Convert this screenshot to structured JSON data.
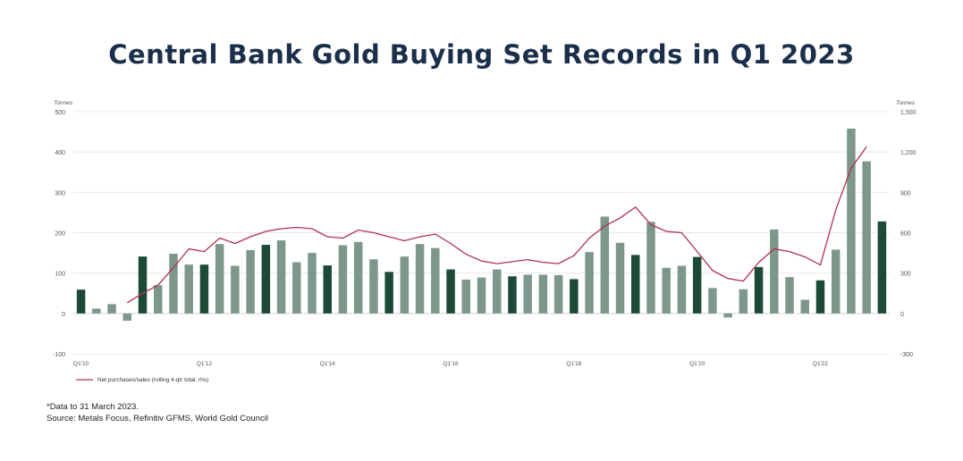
{
  "title": "Central Bank Gold Buying Set Records in Q1 2023",
  "footnotes": {
    "note": "*Data to 31 March 2023.",
    "source": "Source: Metals Focus, Refinitiv GFMS, World Gold Council"
  },
  "colors": {
    "bar_light": "#7d978a",
    "bar_dark": "#1c4a37",
    "line": "#b0304e",
    "grid": "#e8e8e8",
    "axis_text": "#555555"
  },
  "chart_data": {
    "type": "bar",
    "title": "Central Bank Gold Buying Set Records in Q1 2023",
    "y_left": {
      "label": "Tonnes",
      "range": [
        -100,
        500
      ],
      "ticks": [
        "500",
        "400",
        "300",
        "200",
        "100",
        "0",
        "-100"
      ],
      "tick_values": [
        500,
        400,
        300,
        200,
        100,
        0,
        -100
      ]
    },
    "y_right": {
      "label": "Tonnes",
      "range": [
        -300,
        1500
      ],
      "ticks": [
        "1,500",
        "1,200",
        "900",
        "600",
        "300",
        "0",
        "-300"
      ],
      "tick_values": [
        1500,
        1200,
        900,
        600,
        300,
        0,
        -300
      ]
    },
    "x_tick_labels": [
      {
        "label": "Q1'10",
        "index": 0
      },
      {
        "label": "Q1'12",
        "index": 8
      },
      {
        "label": "Q1'14",
        "index": 16
      },
      {
        "label": "Q1'16",
        "index": 24
      },
      {
        "label": "Q1'18",
        "index": 32
      },
      {
        "label": "Q1'20",
        "index": 40
      },
      {
        "label": "Q1'22",
        "index": 48
      }
    ],
    "grid": true,
    "legend_position": "bottom-left",
    "bar_series": {
      "axis": "left",
      "note": "Q1 quarters shown in dark green",
      "values": [
        59,
        12,
        23,
        -18,
        141,
        70,
        148,
        121,
        121,
        172,
        118,
        157,
        170,
        181,
        127,
        150,
        119,
        169,
        177,
        134,
        103,
        141,
        172,
        162,
        109,
        84,
        89,
        109,
        92,
        96,
        96,
        95,
        85,
        152,
        240,
        175,
        145,
        227,
        113,
        118,
        140,
        63,
        -10,
        60,
        115,
        208,
        90,
        34,
        82,
        158,
        458,
        377,
        228
      ]
    },
    "line_series": {
      "axis": "right",
      "name": "Net purchases/sales (rolling 4-qtr total, rhs)",
      "start_index": 3,
      "values": [
        80,
        150,
        210,
        340,
        480,
        460,
        560,
        520,
        570,
        610,
        630,
        640,
        630,
        570,
        560,
        620,
        600,
        570,
        540,
        570,
        590,
        520,
        440,
        390,
        370,
        385,
        400,
        380,
        370,
        430,
        560,
        650,
        710,
        790,
        660,
        610,
        600,
        460,
        320,
        260,
        240,
        380,
        480,
        460,
        420,
        360,
        770,
        1080,
        1240
      ]
    }
  }
}
